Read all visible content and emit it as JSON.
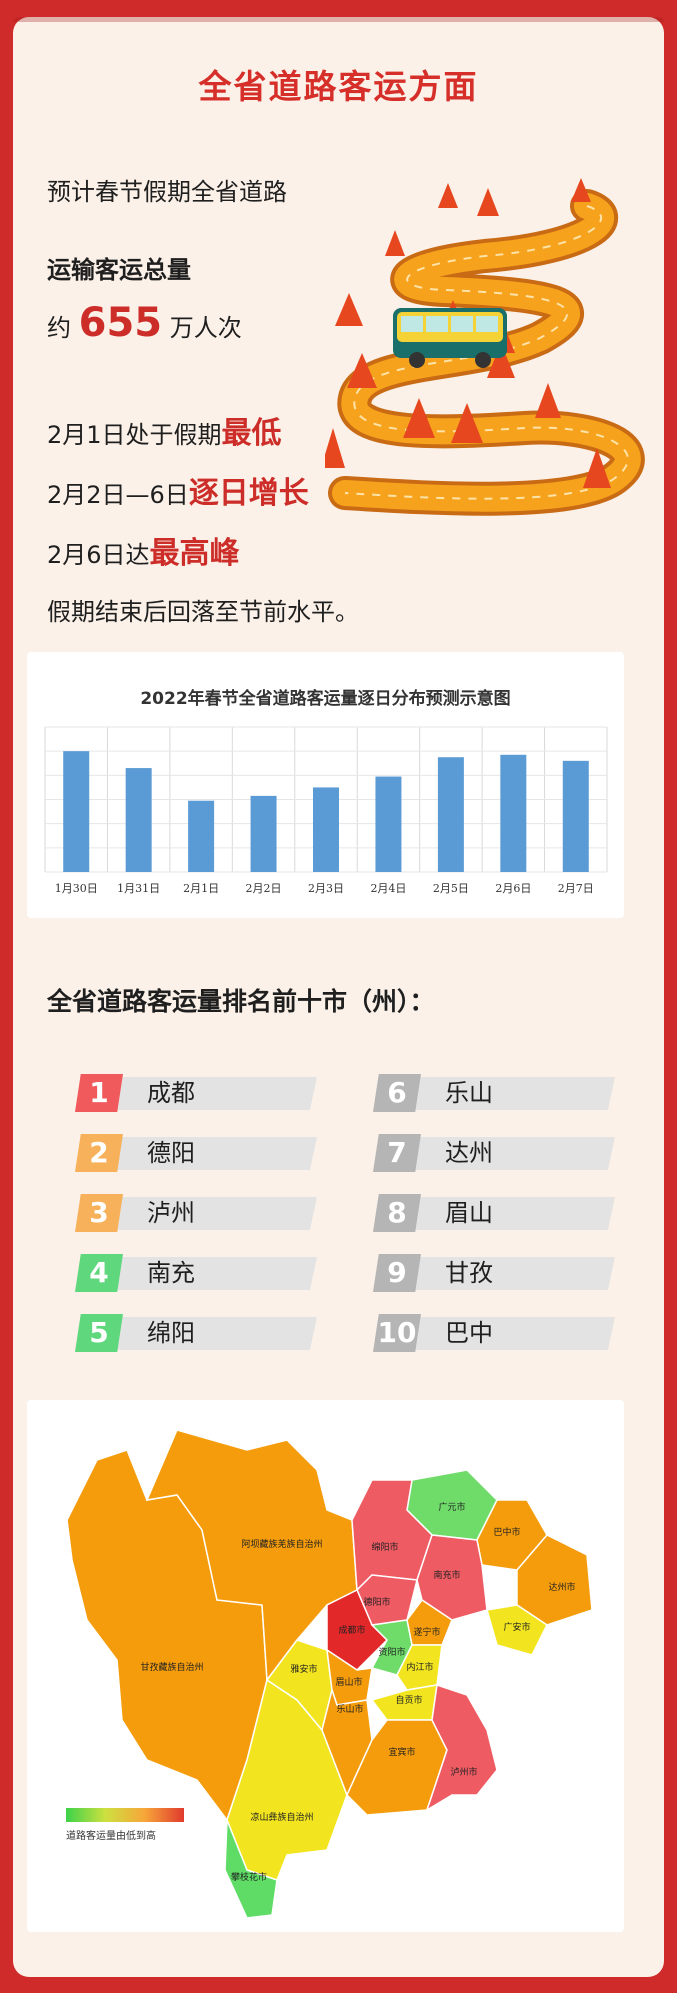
{
  "title": "全省道路客运方面",
  "intro": {
    "line1": "预计春节假期全省道路",
    "line2": "运输客运总量",
    "volume_prefix": "约",
    "volume_value": "655",
    "volume_suffix": "万人次",
    "l4_prefix": "2月1日处于假期",
    "l4_hl": "最低",
    "l5_prefix": "2月2日—6日",
    "l5_hl": "逐日增长",
    "l6_prefix": "2月6日达",
    "l6_hl": "最高峰",
    "line7": "假期结束后回落至节前水平。"
  },
  "chart_data": {
    "type": "bar",
    "title": "2022年春节全省道路客运量逐日分布预测示意图",
    "categories": [
      "1月30日",
      "1月31日",
      "2月1日",
      "2月2日",
      "2月3日",
      "2月4日",
      "2月5日",
      "2月6日",
      "2月7日"
    ],
    "values": [
      100,
      86,
      59,
      63,
      70,
      79,
      95,
      97,
      92
    ],
    "ylim": [
      0,
      120
    ],
    "grid": true,
    "bar_color": "#5b9bd5"
  },
  "ranking": {
    "title": "全省道路客运量排名前十市（州）：",
    "items": [
      {
        "rank": "1",
        "name": "成都",
        "color": "#f05a5d"
      },
      {
        "rank": "2",
        "name": "德阳",
        "color": "#f7b15a"
      },
      {
        "rank": "3",
        "name": "泸州",
        "color": "#f7b15a"
      },
      {
        "rank": "4",
        "name": "南充",
        "color": "#5fd77d"
      },
      {
        "rank": "5",
        "name": "绵阳",
        "color": "#5fd77d"
      },
      {
        "rank": "6",
        "name": "乐山",
        "color": "#b5b5b5"
      },
      {
        "rank": "7",
        "name": "达州",
        "color": "#b5b5b5"
      },
      {
        "rank": "8",
        "name": "眉山",
        "color": "#b5b5b5"
      },
      {
        "rank": "9",
        "name": "甘孜",
        "color": "#b5b5b5"
      },
      {
        "rank": "10",
        "name": "巴中",
        "color": "#b5b5b5"
      }
    ]
  },
  "map": {
    "legend": "道路客运量由低到高",
    "regions": {
      "aba": "阿坝藏族羌族自治州",
      "ganzi": "甘孜藏族自治州",
      "liangshan": "凉山彝族自治州",
      "panzhihua": "攀枝花市",
      "yaan": "雅安市",
      "guangyuan": "广元市",
      "bazhong": "巴中市",
      "mianyang": "绵阳市",
      "nanchong": "南充市",
      "dazhou": "达州市",
      "deyang": "德阳市",
      "chengdu": "成都市",
      "suining": "遂宁市",
      "guangan": "广安市",
      "ziyang": "资阳市",
      "meishan": "眉山市",
      "neijiang": "内江市",
      "leshan": "乐山市",
      "zigong": "自贡市",
      "yibin": "宜宾市",
      "luzhou": "泸州市"
    }
  }
}
